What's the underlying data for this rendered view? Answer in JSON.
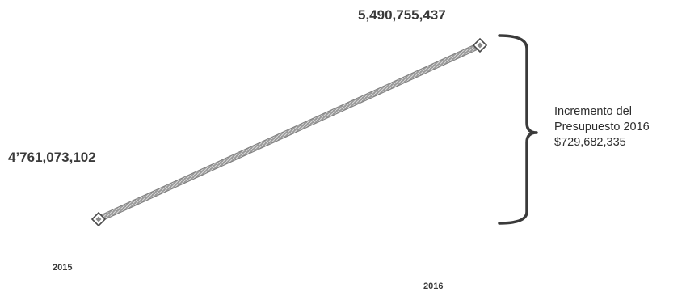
{
  "chart_data": {
    "type": "line",
    "title": "",
    "xlabel": "",
    "ylabel": "",
    "categories": [
      "2015",
      "2016"
    ],
    "values": [
      4761073102,
      5490755437
    ],
    "data_labels": [
      "4’761,073,102",
      "5,490,755,437"
    ],
    "ylim": [
      4761073102,
      5490755437
    ],
    "grid": false,
    "legend": "none",
    "line_color": "#8a8a8a",
    "marker": "diamond",
    "annotation": {
      "lines": [
        "Incremento del",
        "Presupuesto 2016",
        "$729,682,335"
      ],
      "spans": [
        "2015",
        "2016"
      ]
    }
  }
}
